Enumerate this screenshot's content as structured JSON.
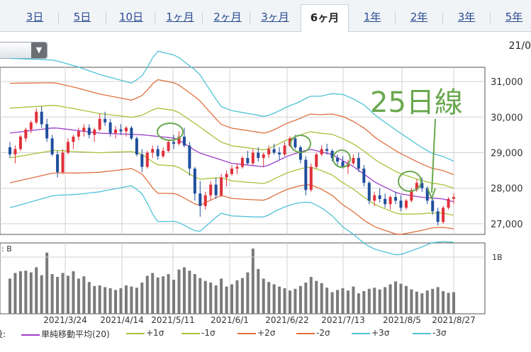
{
  "tabs": [
    {
      "label": "3日",
      "active": false
    },
    {
      "label": "5日",
      "active": false
    },
    {
      "label": "10日",
      "active": false
    },
    {
      "label": "1ヶ月",
      "active": false
    },
    {
      "label": "2ヶ月",
      "active": false
    },
    {
      "label": "3ヶ月",
      "active": false
    },
    {
      "label": "6ヶ月",
      "active": true
    },
    {
      "label": "1年",
      "active": false
    },
    {
      "label": "2年",
      "active": false
    },
    {
      "label": "3年",
      "active": false
    },
    {
      "label": "5年",
      "active": false
    }
  ],
  "header": {
    "date_fragment": "21/0"
  },
  "chart_data": {
    "type": "candlestick-bollinger",
    "price_ticks": [
      "31,000",
      "30,000",
      "29,000",
      "28,000",
      "27,000"
    ],
    "price_tick_values": [
      31000,
      30000,
      29000,
      28000,
      27000
    ],
    "ylim": [
      26700,
      31400
    ],
    "volume_label": ": B",
    "volume_tick": "1B",
    "x_labels": [
      "2021/3/24",
      "2021/4/14",
      "2021/5/11",
      "2021/6/1",
      "2021/6/22",
      "2021/7/13",
      "2021/8/5",
      "2021/8/27"
    ],
    "annotation": "25日線",
    "legend": [
      {
        "label": "単純移動平均(20)",
        "color": "#9b3fc9"
      },
      {
        "label": "+1σ",
        "color": "#a8c23a"
      },
      {
        "label": "-1σ",
        "color": "#a8c23a"
      },
      {
        "label": "+2σ",
        "color": "#e0703f"
      },
      {
        "label": "-2σ",
        "color": "#e0703f"
      },
      {
        "label": "+3σ",
        "color": "#4fc2d6"
      },
      {
        "label": "-3σ",
        "color": "#4fc2d6"
      }
    ],
    "legend_prefix": "没:",
    "ma_anchors": [
      [
        0,
        29550
      ],
      [
        20,
        29700
      ],
      [
        40,
        29550
      ],
      [
        60,
        29500
      ],
      [
        75,
        29400
      ],
      [
        85,
        29000
      ],
      [
        100,
        28700
      ],
      [
        115,
        28600
      ],
      [
        125,
        28900
      ],
      [
        135,
        29100
      ],
      [
        145,
        28950
      ],
      [
        155,
        28600
      ],
      [
        165,
        28150
      ],
      [
        175,
        27850
      ],
      [
        185,
        27750
      ],
      [
        195,
        27700
      ],
      [
        200,
        27620
      ]
    ],
    "band_halfwidth": [
      [
        0,
        700
      ],
      [
        30,
        600
      ],
      [
        55,
        480
      ],
      [
        60,
        560
      ],
      [
        66,
        800
      ],
      [
        85,
        750
      ],
      [
        95,
        500
      ],
      [
        110,
        480
      ],
      [
        120,
        460
      ],
      [
        130,
        470
      ],
      [
        140,
        520
      ],
      [
        150,
        620
      ],
      [
        160,
        650
      ],
      [
        175,
        580
      ],
      [
        190,
        420
      ],
      [
        200,
        380
      ]
    ],
    "candles": [
      [
        29150,
        29300,
        28850,
        28950
      ],
      [
        28950,
        29200,
        28700,
        29100
      ],
      [
        29100,
        29500,
        29050,
        29450
      ],
      [
        29400,
        29700,
        29300,
        29650
      ],
      [
        29650,
        29900,
        29550,
        29850
      ],
      [
        29850,
        30250,
        29800,
        30150
      ],
      [
        30150,
        30300,
        29700,
        29800
      ],
      [
        29800,
        29950,
        29300,
        29400
      ],
      [
        29400,
        29500,
        28900,
        28950
      ],
      [
        28950,
        29050,
        28300,
        28450
      ],
      [
        28450,
        29100,
        28400,
        29000
      ],
      [
        29000,
        29400,
        28950,
        29300
      ],
      [
        29300,
        29500,
        29100,
        29450
      ],
      [
        29450,
        29700,
        29350,
        29600
      ],
      [
        29600,
        29800,
        29450,
        29700
      ],
      [
        29700,
        29800,
        29400,
        29500
      ],
      [
        29500,
        29700,
        29300,
        29650
      ],
      [
        29650,
        30100,
        29600,
        29950
      ],
      [
        29950,
        30150,
        29750,
        29850
      ],
      [
        29850,
        29950,
        29450,
        29550
      ],
      [
        29550,
        29750,
        29400,
        29650
      ],
      [
        29650,
        29800,
        29500,
        29600
      ],
      [
        29600,
        29750,
        29450,
        29700
      ],
      [
        29700,
        29750,
        29350,
        29400
      ],
      [
        29400,
        29450,
        28900,
        28950
      ],
      [
        28950,
        29100,
        28450,
        28600
      ],
      [
        28600,
        29050,
        28550,
        29000
      ],
      [
        29000,
        29200,
        28850,
        29100
      ],
      [
        29100,
        29200,
        28800,
        28900
      ],
      [
        28900,
        29150,
        28850,
        29050
      ],
      [
        29050,
        29350,
        29000,
        29300
      ],
      [
        29300,
        29500,
        29100,
        29250
      ],
      [
        29250,
        29600,
        29200,
        29450
      ],
      [
        29450,
        29700,
        29150,
        29200
      ],
      [
        29200,
        29300,
        28350,
        28550
      ],
      [
        28550,
        28600,
        27650,
        27850
      ],
      [
        27850,
        28200,
        27200,
        27500
      ],
      [
        27500,
        27900,
        27400,
        27800
      ],
      [
        27800,
        28200,
        27650,
        28100
      ],
      [
        28100,
        28300,
        27700,
        27800
      ],
      [
        27800,
        28400,
        27750,
        28300
      ],
      [
        28300,
        28500,
        28050,
        28400
      ],
      [
        28400,
        28650,
        28350,
        28550
      ],
      [
        28550,
        28700,
        28400,
        28600
      ],
      [
        28600,
        28900,
        28550,
        28850
      ],
      [
        28850,
        29050,
        28650,
        28700
      ],
      [
        28700,
        29100,
        28650,
        29000
      ],
      [
        29000,
        29150,
        28750,
        28850
      ],
      [
        28850,
        29000,
        28600,
        28950
      ],
      [
        28950,
        29200,
        28850,
        29100
      ],
      [
        29100,
        29250,
        28950,
        29000
      ],
      [
        29000,
        29150,
        28800,
        28950
      ],
      [
        28950,
        29300,
        28900,
        29200
      ],
      [
        29200,
        29450,
        29150,
        29400
      ],
      [
        29400,
        29500,
        29100,
        29150
      ],
      [
        29150,
        29200,
        28700,
        28800
      ],
      [
        28800,
        28900,
        27800,
        27950
      ],
      [
        27950,
        28700,
        27900,
        28600
      ],
      [
        28600,
        29000,
        28550,
        28950
      ],
      [
        28950,
        29200,
        28900,
        29100
      ],
      [
        29100,
        29250,
        28950,
        29050
      ],
      [
        29050,
        29100,
        28750,
        28850
      ],
      [
        28850,
        28950,
        28650,
        28750
      ],
      [
        28750,
        28900,
        28550,
        28600
      ],
      [
        28600,
        28800,
        28400,
        28700
      ],
      [
        28700,
        28950,
        28650,
        28850
      ],
      [
        28850,
        29000,
        28450,
        28550
      ],
      [
        28550,
        28650,
        28050,
        28150
      ],
      [
        28150,
        28200,
        27550,
        27650
      ],
      [
        27650,
        27900,
        27500,
        27800
      ],
      [
        27800,
        28000,
        27600,
        27700
      ],
      [
        27700,
        27850,
        27450,
        27550
      ],
      [
        27550,
        27800,
        27400,
        27750
      ],
      [
        27750,
        27900,
        27550,
        27650
      ],
      [
        27650,
        27800,
        27350,
        27450
      ],
      [
        27450,
        27700,
        27400,
        27650
      ],
      [
        27650,
        28000,
        27600,
        27950
      ],
      [
        27950,
        28250,
        27900,
        28150
      ],
      [
        28150,
        28300,
        27900,
        28000
      ],
      [
        28000,
        28050,
        27550,
        27650
      ],
      [
        27650,
        27750,
        27250,
        27350
      ],
      [
        27350,
        27450,
        26950,
        27050
      ],
      [
        27050,
        27500,
        27000,
        27450
      ],
      [
        27450,
        27750,
        27400,
        27700
      ],
      [
        27700,
        27850,
        27550,
        27750
      ]
    ],
    "volumes": [
      0.62,
      0.72,
      0.75,
      0.76,
      0.73,
      0.82,
      0.68,
      1.08,
      0.7,
      0.65,
      0.72,
      0.67,
      0.75,
      0.62,
      0.66,
      0.56,
      0.49,
      0.5,
      0.47,
      0.45,
      0.42,
      0.45,
      0.5,
      0.48,
      0.46,
      0.55,
      0.67,
      0.72,
      0.64,
      0.66,
      0.7,
      0.6,
      0.78,
      0.82,
      0.76,
      0.7,
      0.63,
      0.58,
      0.55,
      0.5,
      0.62,
      0.48,
      0.52,
      0.59,
      0.63,
      0.73,
      1.15,
      0.79,
      0.62,
      0.56,
      0.52,
      0.48,
      0.45,
      0.41,
      0.44,
      0.49,
      0.55,
      0.65,
      0.58,
      0.54,
      0.46,
      0.38,
      0.42,
      0.45,
      0.41,
      0.48,
      0.36,
      0.4,
      0.44,
      0.46,
      0.43,
      0.47,
      0.52,
      0.57,
      0.53,
      0.49,
      0.43,
      0.39,
      0.36,
      0.41,
      0.44,
      0.47,
      0.4,
      0.37,
      0.38
    ]
  }
}
